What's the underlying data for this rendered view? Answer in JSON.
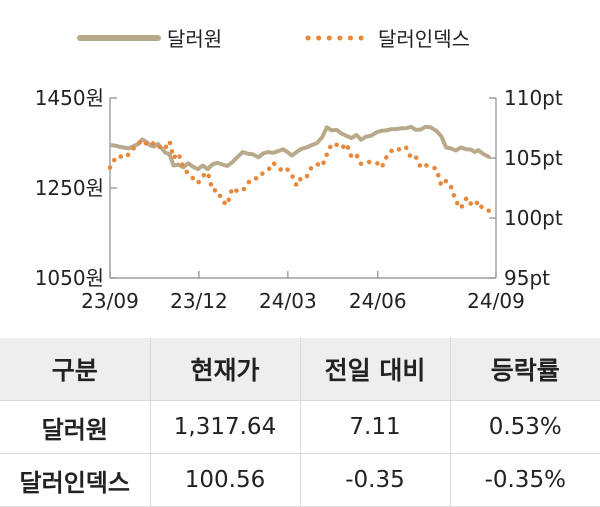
{
  "chart_data": {
    "type": "line",
    "legend_position": "top",
    "x_ticks": [
      "23/09",
      "23/12",
      "24/03",
      "24/06",
      "24/09"
    ],
    "y_left": {
      "ticks": [
        "1450원",
        "1250원",
        "1050원"
      ],
      "range": [
        1050,
        1450
      ]
    },
    "y_right": {
      "ticks": [
        "110pt",
        "105pt",
        "100pt",
        "95pt"
      ],
      "range": [
        95,
        110
      ]
    },
    "grid": false,
    "series": [
      {
        "name": "달러원",
        "axis": "left",
        "style": "solid",
        "color": "#b9a98b",
        "points": [
          [
            "2023-09-01",
            1345
          ],
          [
            "2023-09-05",
            1345
          ],
          [
            "2023-09-10",
            1342
          ],
          [
            "2023-09-15",
            1340
          ],
          [
            "2023-09-20",
            1338
          ],
          [
            "2023-09-25",
            1343
          ],
          [
            "2023-09-30",
            1348
          ],
          [
            "2023-10-04",
            1358
          ],
          [
            "2023-10-08",
            1353
          ],
          [
            "2023-10-12",
            1345
          ],
          [
            "2023-10-16",
            1342
          ],
          [
            "2023-10-20",
            1348
          ],
          [
            "2023-10-24",
            1338
          ],
          [
            "2023-10-28",
            1328
          ],
          [
            "2023-11-01",
            1325
          ],
          [
            "2023-11-05",
            1300
          ],
          [
            "2023-11-10",
            1302
          ],
          [
            "2023-11-15",
            1296
          ],
          [
            "2023-11-20",
            1305
          ],
          [
            "2023-11-25",
            1297
          ],
          [
            "2023-11-30",
            1292
          ],
          [
            "2023-12-05",
            1300
          ],
          [
            "2023-12-10",
            1292
          ],
          [
            "2023-12-15",
            1303
          ],
          [
            "2023-12-20",
            1306
          ],
          [
            "2023-12-25",
            1302
          ],
          [
            "2023-12-30",
            1299
          ],
          [
            "2024-01-04",
            1307
          ],
          [
            "2024-01-10",
            1320
          ],
          [
            "2024-01-15",
            1330
          ],
          [
            "2024-01-20",
            1326
          ],
          [
            "2024-01-25",
            1325
          ],
          [
            "2024-01-31",
            1318
          ],
          [
            "2024-02-05",
            1327
          ],
          [
            "2024-02-10",
            1330
          ],
          [
            "2024-02-15",
            1328
          ],
          [
            "2024-02-20",
            1332
          ],
          [
            "2024-02-25",
            1336
          ],
          [
            "2024-02-29",
            1331
          ],
          [
            "2024-03-05",
            1322
          ],
          [
            "2024-03-10",
            1330
          ],
          [
            "2024-03-15",
            1337
          ],
          [
            "2024-03-20",
            1340
          ],
          [
            "2024-03-25",
            1345
          ],
          [
            "2024-03-31",
            1350
          ],
          [
            "2024-04-05",
            1363
          ],
          [
            "2024-04-10",
            1385
          ],
          [
            "2024-04-15",
            1378
          ],
          [
            "2024-04-20",
            1379
          ],
          [
            "2024-04-25",
            1371
          ],
          [
            "2024-04-30",
            1366
          ],
          [
            "2024-05-05",
            1361
          ],
          [
            "2024-05-10",
            1368
          ],
          [
            "2024-05-15",
            1357
          ],
          [
            "2024-05-20",
            1364
          ],
          [
            "2024-05-25",
            1366
          ],
          [
            "2024-05-31",
            1374
          ],
          [
            "2024-06-05",
            1377
          ],
          [
            "2024-06-10",
            1378
          ],
          [
            "2024-06-15",
            1381
          ],
          [
            "2024-06-20",
            1381
          ],
          [
            "2024-06-25",
            1383
          ],
          [
            "2024-06-30",
            1383
          ],
          [
            "2024-07-05",
            1386
          ],
          [
            "2024-07-10",
            1379
          ],
          [
            "2024-07-15",
            1380
          ],
          [
            "2024-07-20",
            1386
          ],
          [
            "2024-07-25",
            1385
          ],
          [
            "2024-07-31",
            1377
          ],
          [
            "2024-08-05",
            1365
          ],
          [
            "2024-08-10",
            1340
          ],
          [
            "2024-08-15",
            1338
          ],
          [
            "2024-08-20",
            1333
          ],
          [
            "2024-08-25",
            1340
          ],
          [
            "2024-08-31",
            1336
          ],
          [
            "2024-09-05",
            1335
          ],
          [
            "2024-09-08",
            1330
          ],
          [
            "2024-09-12",
            1334
          ],
          [
            "2024-09-16",
            1327
          ],
          [
            "2024-09-20",
            1322
          ],
          [
            "2024-09-24",
            1318
          ]
        ]
      },
      {
        "name": "달러인덱스",
        "axis": "right",
        "style": "dotted",
        "color": "#e8873a",
        "points": [
          [
            "2023-09-01",
            104.2
          ],
          [
            "2023-09-05",
            104.8
          ],
          [
            "2023-09-10",
            105.2
          ],
          [
            "2023-09-15",
            105.0
          ],
          [
            "2023-09-20",
            105.3
          ],
          [
            "2023-09-25",
            105.8
          ],
          [
            "2023-09-30",
            106.2
          ],
          [
            "2023-10-04",
            106.5
          ],
          [
            "2023-10-08",
            106.2
          ],
          [
            "2023-10-12",
            106.0
          ],
          [
            "2023-10-16",
            106.3
          ],
          [
            "2023-10-20",
            106.1
          ],
          [
            "2023-10-24",
            105.7
          ],
          [
            "2023-10-28",
            105.9
          ],
          [
            "2023-11-01",
            106.4
          ],
          [
            "2023-11-05",
            105.0
          ],
          [
            "2023-11-10",
            105.4
          ],
          [
            "2023-11-15",
            104.2
          ],
          [
            "2023-11-20",
            103.7
          ],
          [
            "2023-11-25",
            103.3
          ],
          [
            "2023-11-30",
            102.9
          ],
          [
            "2023-12-05",
            103.5
          ],
          [
            "2023-12-10",
            103.8
          ],
          [
            "2023-12-15",
            102.3
          ],
          [
            "2023-12-20",
            102.3
          ],
          [
            "2023-12-25",
            101.4
          ],
          [
            "2023-12-30",
            101.1
          ],
          [
            "2024-01-04",
            102.5
          ],
          [
            "2024-01-10",
            102.2
          ],
          [
            "2024-01-15",
            102.3
          ],
          [
            "2024-01-20",
            102.9
          ],
          [
            "2024-01-25",
            103.3
          ],
          [
            "2024-01-31",
            103.3
          ],
          [
            "2024-02-05",
            103.8
          ],
          [
            "2024-02-10",
            104.0
          ],
          [
            "2024-02-15",
            104.6
          ],
          [
            "2024-02-20",
            104.2
          ],
          [
            "2024-02-25",
            103.9
          ],
          [
            "2024-02-29",
            104.1
          ],
          [
            "2024-03-05",
            103.6
          ],
          [
            "2024-03-10",
            102.7
          ],
          [
            "2024-03-15",
            103.4
          ],
          [
            "2024-03-20",
            103.4
          ],
          [
            "2024-03-25",
            104.2
          ],
          [
            "2024-03-31",
            104.5
          ],
          [
            "2024-04-05",
            104.3
          ],
          [
            "2024-04-10",
            105.3
          ],
          [
            "2024-04-15",
            106.2
          ],
          [
            "2024-04-20",
            106.1
          ],
          [
            "2024-04-25",
            105.8
          ],
          [
            "2024-04-30",
            106.2
          ],
          [
            "2024-05-05",
            105.1
          ],
          [
            "2024-05-10",
            105.3
          ],
          [
            "2024-05-15",
            104.5
          ],
          [
            "2024-05-20",
            104.6
          ],
          [
            "2024-05-25",
            104.7
          ],
          [
            "2024-05-31",
            104.6
          ],
          [
            "2024-06-05",
            104.2
          ],
          [
            "2024-06-10",
            105.1
          ],
          [
            "2024-06-15",
            105.6
          ],
          [
            "2024-06-20",
            105.5
          ],
          [
            "2024-06-25",
            105.9
          ],
          [
            "2024-06-30",
            105.9
          ],
          [
            "2024-07-05",
            105.0
          ],
          [
            "2024-07-10",
            105.1
          ],
          [
            "2024-07-15",
            104.2
          ],
          [
            "2024-07-20",
            104.4
          ],
          [
            "2024-07-25",
            104.3
          ],
          [
            "2024-07-31",
            104.1
          ],
          [
            "2024-08-05",
            102.7
          ],
          [
            "2024-08-10",
            103.1
          ],
          [
            "2024-08-15",
            102.6
          ],
          [
            "2024-08-20",
            101.4
          ],
          [
            "2024-08-25",
            100.8
          ],
          [
            "2024-08-31",
            101.7
          ],
          [
            "2024-09-05",
            101.1
          ],
          [
            "2024-09-08",
            101.0
          ],
          [
            "2024-09-12",
            101.4
          ],
          [
            "2024-09-16",
            100.8
          ],
          [
            "2024-09-20",
            100.7
          ],
          [
            "2024-09-24",
            100.56
          ]
        ]
      }
    ]
  },
  "table": {
    "headers": [
      "구분",
      "현재가",
      "전일 대비",
      "등락률"
    ],
    "rows": [
      [
        "달러원",
        "1,317.64",
        "7.11",
        "0.53%"
      ],
      [
        "달러인덱스",
        "100.56",
        "-0.35",
        "-0.35%"
      ]
    ]
  }
}
